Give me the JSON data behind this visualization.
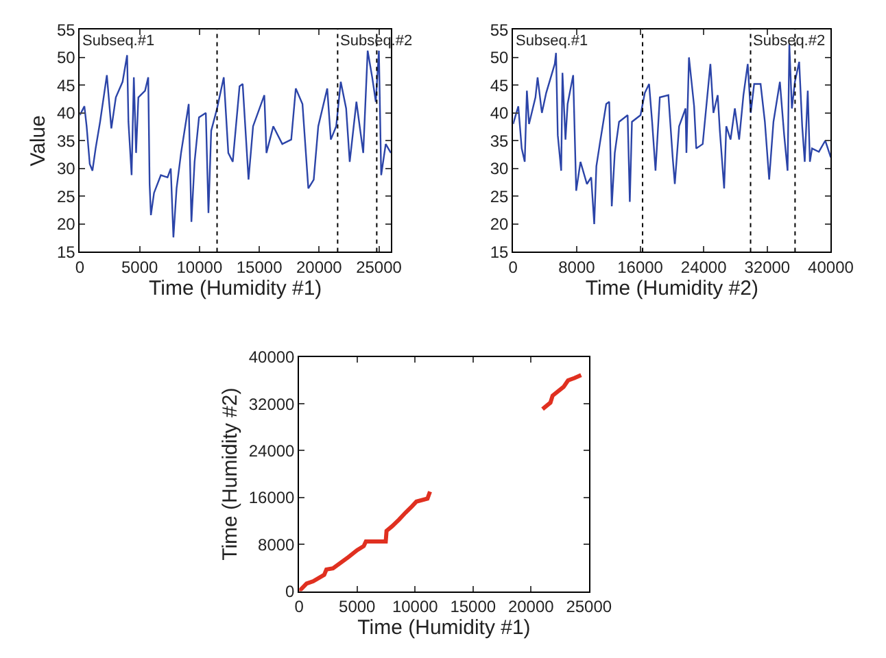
{
  "chart_data": [
    {
      "type": "line",
      "xlabel": "Time (Humidity #1)",
      "ylabel": "Value",
      "color": "#2b44a8",
      "line_style": "solid",
      "marker": "none",
      "x": [
        0,
        376,
        564,
        827,
        1050,
        1316,
        1690,
        2256,
        2632,
        3008,
        3572,
        3950,
        4060,
        4325,
        4512,
        4700,
        4890,
        5450,
        5715,
        5830,
        5940,
        6200,
        6770,
        7330,
        7600,
        7820,
        8085,
        8460,
        9100,
        9325,
        9590,
        9960,
        10530,
        10750,
        10980,
        11470,
        12030,
        12410,
        12780,
        13350,
        13610,
        14100,
        14480,
        15420,
        15600,
        16170,
        16920,
        17670,
        18050,
        18610,
        19100,
        19550,
        19930,
        20680,
        20980,
        21430,
        21810,
        22260,
        22560,
        23120,
        23690,
        24060,
        24440,
        24740,
        25000,
        25190,
        25570,
        26000
      ],
      "values": [
        39.6,
        41.2,
        37.6,
        30.8,
        29.6,
        33.6,
        38.4,
        46.8,
        37.2,
        42.8,
        45.6,
        50.4,
        38.4,
        28.8,
        46.4,
        32.8,
        42.8,
        44,
        46.4,
        27.2,
        21.6,
        25.6,
        28.8,
        28.4,
        30,
        17.6,
        26.4,
        32.8,
        41.6,
        20.4,
        31.2,
        39.2,
        40,
        22,
        36.8,
        40.8,
        46.4,
        32.8,
        31.2,
        44.8,
        45.2,
        28,
        37.6,
        43.2,
        32.8,
        37.6,
        34.4,
        35.2,
        44.4,
        41.6,
        26.4,
        28,
        37.6,
        44.4,
        35.2,
        37.6,
        45.6,
        40.8,
        31.2,
        42,
        32.8,
        51.2,
        46.4,
        42,
        51.2,
        28.8,
        34.4,
        32.8
      ],
      "xlim": [
        0,
        26000
      ],
      "xticks": [
        0,
        5000,
        10000,
        15000,
        20000,
        25000
      ],
      "ylim": [
        15,
        55
      ],
      "yticks": [
        15,
        20,
        25,
        30,
        35,
        40,
        45,
        50,
        55
      ],
      "ref_lines": [
        {
          "axis": "x",
          "value": 11470,
          "line_style": "dotted",
          "color": "#000000"
        },
        {
          "axis": "x",
          "value": 21550,
          "line_style": "dotted",
          "color": "#000000"
        },
        {
          "axis": "x",
          "value": 24820,
          "line_style": "dotted",
          "color": "#000000"
        }
      ],
      "annotations": [
        "Subseq.#1",
        {
          "text": "Subseq.#2",
          "x": 21550,
          "y": 55
        }
      ]
    },
    {
      "type": "line",
      "xlabel": "Time (Humidity #2)",
      "color": "#2b44a8",
      "line_style": "solid",
      "marker": "none",
      "x": [
        0,
        650,
        1080,
        1460,
        1730,
        2000,
        2810,
        3080,
        3620,
        4160,
        5240,
        5400,
        5620,
        6050,
        6210,
        6590,
        6860,
        7560,
        7940,
        8480,
        9290,
        9830,
        10210,
        10480,
        10910,
        11720,
        12100,
        12420,
        12800,
        13340,
        14420,
        14690,
        14960,
        16040,
        16580,
        17120,
        17500,
        17930,
        18470,
        19550,
        20090,
        20360,
        20900,
        21710,
        21820,
        22140,
        22790,
        23060,
        23870,
        24840,
        25220,
        25760,
        26030,
        26570,
        26840,
        27380,
        27920,
        28460,
        29000,
        29540,
        29920,
        30350,
        31160,
        31700,
        32240,
        32780,
        33590,
        34130,
        34560,
        34780,
        35100,
        35480,
        36020,
        36400,
        36720,
        37100,
        37370,
        37640,
        38500,
        39300,
        40000
      ],
      "values": [
        38,
        41.2,
        33.6,
        31.2,
        44,
        38,
        42.8,
        46.4,
        40,
        43.6,
        48.8,
        50.8,
        36,
        29.6,
        47.2,
        35.2,
        41.6,
        46.8,
        26,
        31.2,
        27.2,
        28.4,
        20,
        30.4,
        34.4,
        41.6,
        42,
        23.2,
        32.8,
        38.4,
        39.6,
        24,
        38.4,
        39.6,
        43.6,
        45.2,
        38.4,
        29.6,
        42.8,
        43.2,
        32,
        27.2,
        37.6,
        40.8,
        32.8,
        50,
        41.2,
        33.6,
        34.4,
        48.8,
        40,
        43.2,
        36.8,
        26.4,
        37.6,
        35.2,
        40.8,
        35.2,
        43.2,
        48.8,
        40,
        45.2,
        45.2,
        38.4,
        28,
        38.4,
        45.6,
        36,
        29.6,
        52.4,
        40.8,
        45.6,
        49.2,
        37.6,
        31.2,
        44,
        31.2,
        33.6,
        33,
        35,
        32
      ],
      "xlim": [
        0,
        40000
      ],
      "xticks": [
        0,
        8000,
        16000,
        24000,
        32000,
        40000
      ],
      "ylim": [
        15,
        55
      ],
      "yticks": [
        15,
        20,
        25,
        30,
        35,
        40,
        45,
        50,
        55
      ],
      "ref_lines": [
        {
          "axis": "x",
          "value": 16300,
          "line_style": "dotted",
          "color": "#000000"
        },
        {
          "axis": "x",
          "value": 29900,
          "line_style": "dotted",
          "color": "#000000"
        },
        {
          "axis": "x",
          "value": 35500,
          "line_style": "dotted",
          "color": "#000000"
        }
      ],
      "annotations": [
        "Subseq.#1",
        {
          "text": "Subseq.#2",
          "x": 29900,
          "y": 55
        }
      ]
    },
    {
      "type": "line",
      "xlabel": "Time (Humidity #1)",
      "ylabel": "Time (Humidity #2)",
      "color": "#e03020",
      "line_style": "solid",
      "marker": "none",
      "x": [
        0,
        640,
        1210,
        2160,
        2350,
        2920,
        4240,
        5000,
        5570,
        5760,
        7470,
        7540,
        8030,
        8600,
        9170,
        9740,
        10120,
        11070,
        11290,
        16000,
        21000,
        21680,
        21870,
        22820,
        23200,
        23760,
        24330
      ],
      "values": [
        0,
        1300,
        1700,
        2800,
        3700,
        3900,
        5800,
        7000,
        7700,
        8500,
        8500,
        10300,
        11100,
        12200,
        13400,
        14500,
        15300,
        15800,
        17000,
        null,
        31100,
        32200,
        33400,
        34900,
        36000,
        36400,
        36900
      ],
      "xlim": [
        0,
        25000
      ],
      "xticks": [
        0,
        5000,
        10000,
        15000,
        20000,
        25000
      ],
      "ylim": [
        0,
        40000
      ],
      "yticks": [
        0,
        8000,
        16000,
        24000,
        32000,
        40000
      ]
    }
  ]
}
